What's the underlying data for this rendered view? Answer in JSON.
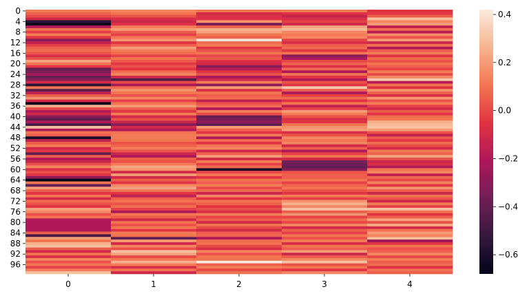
{
  "chart_data": {
    "type": "heatmap",
    "title": "",
    "xlabel": "",
    "ylabel": "",
    "columns": [
      "0",
      "1",
      "2",
      "3",
      "4"
    ],
    "row_count": 100,
    "y_tick_labels": [
      "0",
      "4",
      "8",
      "12",
      "16",
      "20",
      "24",
      "28",
      "32",
      "36",
      "40",
      "44",
      "48",
      "52",
      "56",
      "60",
      "64",
      "68",
      "72",
      "76",
      "80",
      "84",
      "88",
      "92",
      "96"
    ],
    "colorbar": {
      "range": [
        -0.68,
        0.42
      ],
      "ticks": [
        -0.6,
        -0.4,
        -0.2,
        0.0,
        0.2,
        0.4
      ],
      "tick_labels": [
        "−0.6",
        "−0.4",
        "−0.2",
        "0.0",
        "0.2",
        "0.4"
      ],
      "colormap": "rocket",
      "stops": [
        "#03051a",
        "#36193e",
        "#701f57",
        "#ad1759",
        "#e13342",
        "#f37651",
        "#f6b48f",
        "#faebdd"
      ]
    },
    "values": [
      [
        0.12,
        0.14,
        0.1,
        0.12,
        -0.05
      ],
      [
        0.06,
        0.1,
        -0.1,
        -0.06,
        -0.04
      ],
      [
        0.0,
        0.02,
        -0.08,
        -0.14,
        0.05
      ],
      [
        -0.1,
        -0.08,
        -0.05,
        -0.08,
        0.3
      ],
      [
        -0.55,
        -0.12,
        0.18,
        -0.02,
        0.14
      ],
      [
        -0.68,
        -0.06,
        -0.35,
        -0.1,
        0.2
      ],
      [
        -0.2,
        0.12,
        0.05,
        0.22,
        -0.15
      ],
      [
        0.1,
        0.2,
        0.25,
        0.28,
        0.08
      ],
      [
        -0.02,
        0.04,
        0.22,
        0.15,
        -0.18
      ],
      [
        0.12,
        -0.02,
        0.1,
        0.12,
        0.16
      ],
      [
        -0.05,
        0.1,
        0.06,
        0.15,
        0.02
      ],
      [
        -0.3,
        0.18,
        0.4,
        -0.02,
        0.2
      ],
      [
        -0.15,
        -0.05,
        0.08,
        -0.08,
        -0.12
      ],
      [
        -0.02,
        0.05,
        0.12,
        0.05,
        0.1
      ],
      [
        0.05,
        0.2,
        -0.05,
        0.08,
        -0.2
      ],
      [
        0.08,
        0.12,
        0.02,
        -0.04,
        0.05
      ],
      [
        0.03,
        0.08,
        0.1,
        0.1,
        0.12
      ],
      [
        -0.08,
        -0.02,
        0.0,
        -0.3,
        -0.05
      ],
      [
        0.02,
        0.1,
        0.04,
        -0.22,
        0.08
      ],
      [
        0.22,
        0.04,
        -0.06,
        0.0,
        0.02
      ],
      [
        0.1,
        -0.04,
        -0.1,
        0.06,
        0.1
      ],
      [
        -0.05,
        0.02,
        -0.3,
        -0.06,
        0.05
      ],
      [
        -0.4,
        -0.05,
        -0.18,
        0.08,
        -0.02
      ],
      [
        -0.35,
        0.08,
        -0.05,
        -0.2,
        0.12
      ],
      [
        -0.22,
        0.14,
        0.02,
        0.1,
        0.0
      ],
      [
        -0.4,
        -0.1,
        -0.22,
        -0.05,
        0.15
      ],
      [
        -0.3,
        -0.45,
        -0.12,
        -0.2,
        0.32
      ],
      [
        -0.1,
        0.0,
        0.12,
        0.02,
        -0.18
      ],
      [
        -0.55,
        -0.22,
        -0.3,
        -0.05,
        0.1
      ],
      [
        0.1,
        0.08,
        0.2,
        0.32,
        -0.05
      ],
      [
        -0.42,
        0.18,
        -0.08,
        0.05,
        0.18
      ],
      [
        -0.15,
        0.1,
        0.1,
        -0.2,
        0.06
      ],
      [
        0.05,
        0.02,
        0.05,
        -0.02,
        -0.08
      ],
      [
        0.18,
        0.14,
        0.08,
        0.08,
        0.18
      ],
      [
        -0.1,
        -0.02,
        -0.15,
        -0.05,
        0.02
      ],
      [
        -0.68,
        0.1,
        0.02,
        0.1,
        0.12
      ],
      [
        0.25,
        0.2,
        0.08,
        -0.15,
        -0.02
      ],
      [
        0.0,
        0.05,
        -0.2,
        -0.02,
        -0.1
      ],
      [
        -0.2,
        -0.05,
        0.12,
        0.2,
        0.05
      ],
      [
        -0.12,
        0.12,
        0.0,
        0.12,
        -0.06
      ],
      [
        -0.3,
        -0.1,
        -0.4,
        0.02,
        0.08
      ],
      [
        -0.42,
        0.02,
        -0.35,
        -0.08,
        0.1
      ],
      [
        -0.2,
        -0.12,
        -0.28,
        -0.05,
        0.25
      ],
      [
        -0.48,
        -0.3,
        -0.42,
        0.1,
        0.28
      ],
      [
        0.3,
        -0.1,
        0.2,
        0.18,
        0.3
      ],
      [
        -0.2,
        -0.2,
        0.05,
        0.2,
        0.2
      ],
      [
        0.1,
        0.1,
        -0.05,
        -0.08,
        0.02
      ],
      [
        0.05,
        0.12,
        0.12,
        0.02,
        -0.15
      ],
      [
        -0.62,
        0.12,
        -0.2,
        0.15,
        0.04
      ],
      [
        -0.15,
        0.1,
        0.08,
        0.1,
        -0.04
      ],
      [
        0.05,
        0.02,
        -0.05,
        0.14,
        0.08
      ],
      [
        0.12,
        0.06,
        0.1,
        -0.1,
        0.0
      ],
      [
        -0.1,
        0.12,
        0.14,
        0.05,
        -0.1
      ],
      [
        -0.05,
        0.02,
        -0.1,
        -0.2,
        0.12
      ],
      [
        -0.4,
        -0.12,
        0.06,
        -0.02,
        0.06
      ],
      [
        0.05,
        -0.2,
        0.2,
        0.1,
        0.22
      ],
      [
        -0.2,
        0.05,
        -0.1,
        -0.1,
        0.02
      ],
      [
        -0.12,
        0.02,
        0.12,
        -0.35,
        -0.12
      ],
      [
        0.02,
        0.12,
        -0.02,
        -0.38,
        -0.08
      ],
      [
        0.15,
        0.22,
        0.08,
        -0.4,
        -0.2
      ],
      [
        -0.08,
        0.18,
        -0.62,
        -0.32,
        0.1
      ],
      [
        0.02,
        -0.1,
        0.0,
        0.02,
        0.15
      ],
      [
        -0.05,
        0.2,
        0.1,
        0.05,
        -0.15
      ],
      [
        -0.3,
        -0.1,
        -0.05,
        0.05,
        0.08
      ],
      [
        -0.68,
        0.05,
        0.1,
        0.1,
        0.0
      ],
      [
        0.1,
        -0.05,
        0.05,
        -0.02,
        0.14
      ],
      [
        -0.4,
        0.15,
        0.12,
        0.06,
        -0.05
      ],
      [
        0.2,
        0.22,
        0.0,
        0.1,
        0.18
      ],
      [
        0.05,
        0.1,
        0.08,
        0.02,
        0.05
      ],
      [
        -0.05,
        -0.05,
        -0.12,
        -0.05,
        -0.12
      ],
      [
        0.1,
        -0.15,
        0.15,
        0.12,
        0.1
      ],
      [
        -0.1,
        0.05,
        -0.05,
        -0.02,
        0.02
      ],
      [
        0.08,
        0.1,
        0.1,
        0.18,
        -0.1
      ],
      [
        0.02,
        0.02,
        0.06,
        0.25,
        0.12
      ],
      [
        -0.05,
        0.08,
        -0.05,
        0.15,
        -0.02
      ],
      [
        0.22,
        -0.02,
        0.02,
        0.3,
        0.3
      ],
      [
        0.15,
        -0.2,
        -0.08,
        0.05,
        0.1
      ],
      [
        0.02,
        0.1,
        0.12,
        0.18,
        -0.05
      ],
      [
        0.1,
        0.05,
        -0.02,
        -0.02,
        0.05
      ],
      [
        -0.2,
        -0.1,
        0.05,
        0.08,
        0.22
      ],
      [
        -0.2,
        0.1,
        -0.1,
        0.0,
        0.02
      ],
      [
        -0.2,
        0.02,
        0.1,
        0.15,
        0.24
      ],
      [
        -0.2,
        0.1,
        0.0,
        -0.1,
        -0.1
      ],
      [
        -0.2,
        -0.05,
        -0.1,
        0.05,
        0.1
      ],
      [
        0.05,
        0.12,
        0.05,
        -0.02,
        0.2
      ],
      [
        -0.48,
        0.1,
        0.06,
        0.1,
        0.14
      ],
      [
        0.2,
        -0.4,
        -0.2,
        0.02,
        0.28
      ],
      [
        0.1,
        0.2,
        0.08,
        0.12,
        -0.25
      ],
      [
        0.25,
        -0.1,
        0.1,
        -0.08,
        -0.05
      ],
      [
        0.3,
        0.14,
        0.0,
        0.1,
        0.1
      ],
      [
        0.05,
        0.02,
        -0.08,
        0.05,
        0.02
      ],
      [
        -0.1,
        0.3,
        0.15,
        0.2,
        0.05
      ],
      [
        0.1,
        0.22,
        0.02,
        -0.12,
        0.15
      ],
      [
        -0.08,
        0.0,
        0.1,
        0.05,
        0.0
      ],
      [
        0.15,
        0.1,
        0.1,
        0.15,
        0.12
      ],
      [
        0.02,
        0.25,
        0.42,
        0.3,
        0.05
      ],
      [
        0.1,
        0.12,
        0.05,
        0.02,
        0.08
      ],
      [
        -0.02,
        -0.08,
        0.12,
        0.1,
        -0.06
      ],
      [
        0.12,
        0.1,
        0.0,
        -0.05,
        0.1
      ],
      [
        0.3,
        -0.1,
        0.1,
        0.15,
        0.05
      ]
    ]
  }
}
